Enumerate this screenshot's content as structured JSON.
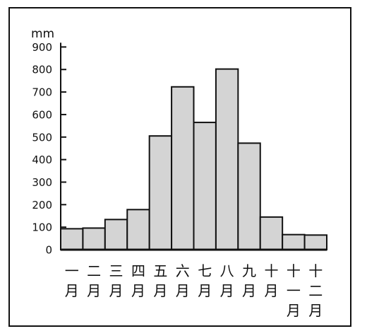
{
  "chart_data": {
    "type": "bar",
    "ylabel": "mm",
    "ylim": [
      0,
      900
    ],
    "yticks": [
      0,
      100,
      200,
      300,
      400,
      500,
      600,
      700,
      800,
      900
    ],
    "categories": [
      [
        "一",
        "月"
      ],
      [
        "二",
        "月"
      ],
      [
        "三",
        "月"
      ],
      [
        "四",
        "月"
      ],
      [
        "五",
        "月"
      ],
      [
        "六",
        "月"
      ],
      [
        "七",
        "月"
      ],
      [
        "八",
        "月"
      ],
      [
        "九",
        "月"
      ],
      [
        "十",
        "月"
      ],
      [
        "十",
        "一",
        "月"
      ],
      [
        "十",
        "二",
        "月"
      ]
    ],
    "values": [
      93,
      96,
      134,
      178,
      505,
      723,
      565,
      802,
      473,
      145,
      67,
      65
    ],
    "bar_color": "#d4d4d4",
    "edge_color": "#111111",
    "grid": false,
    "legend": "none"
  }
}
